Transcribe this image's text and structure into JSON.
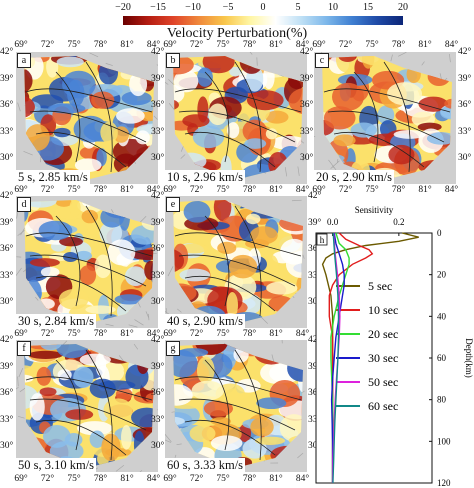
{
  "colorbar": {
    "title": "Velocity Perturbation(%)",
    "ticks": [
      "−20",
      "−15",
      "−10",
      "−5",
      "0",
      "5",
      "10",
      "15",
      "20"
    ],
    "tick_values": [
      -20,
      -15,
      -10,
      -5,
      0,
      5,
      10,
      15,
      20
    ],
    "colors": [
      "#6b0000",
      "#b51d12",
      "#e0452a",
      "#f08a3c",
      "#f9c74c",
      "#fff6a5",
      "#ffffff",
      "#bfe0f5",
      "#7cb7ea",
      "#3f7fd1",
      "#1f4aa6",
      "#0c2678"
    ]
  },
  "map_axes": {
    "lon_ticks": [
      "69°",
      "72°",
      "75°",
      "78°",
      "81°",
      "84°"
    ],
    "lat_ticks": [
      "42°",
      "39°",
      "36°",
      "33°",
      "30°"
    ]
  },
  "panels": [
    {
      "letter": "a",
      "caption": "5 s, 2.85 km/s"
    },
    {
      "letter": "b",
      "caption": "10 s, 2.96 km/s"
    },
    {
      "letter": "c",
      "caption": "20 s, 2.90 km/s"
    },
    {
      "letter": "d",
      "caption": "30 s, 2.84 km/s"
    },
    {
      "letter": "e",
      "caption": "40 s, 2.90 km/s"
    },
    {
      "letter": "f",
      "caption": "50 s, 3.10 km/s"
    },
    {
      "letter": "g",
      "caption": "60 s, 3.33 km/s"
    }
  ],
  "chart_data": {
    "type": "line",
    "panel_letter": "h",
    "xlabel": "Sensitivity",
    "ylabel": "Depth(km)",
    "xlim": [
      -0.05,
      0.3
    ],
    "ylim": [
      0,
      120
    ],
    "x_ticks": [
      "0.0",
      "0.2"
    ],
    "x_tick_values": [
      0.0,
      0.2
    ],
    "y_ticks": [
      "0",
      "20",
      "40",
      "60",
      "80",
      "100",
      "120"
    ],
    "y_tick_values": [
      0,
      20,
      40,
      60,
      80,
      100,
      120
    ],
    "series": [
      {
        "name": "5 sec",
        "color": "#6b5a00",
        "depth": [
          0,
          2,
          4,
          6,
          8,
          10,
          12,
          15,
          20,
          30,
          40,
          60,
          80,
          100,
          120
        ],
        "sensitivity": [
          0.21,
          0.26,
          0.2,
          0.1,
          0.04,
          0.0,
          -0.02,
          -0.03,
          -0.02,
          -0.005,
          0.0,
          0.0,
          0.0,
          0.0,
          0.0
        ]
      },
      {
        "name": "10 sec",
        "color": "#e11d1d",
        "depth": [
          0,
          3,
          6,
          8,
          10,
          12,
          15,
          20,
          25,
          30,
          40,
          50,
          60,
          80,
          100,
          120
        ],
        "sensitivity": [
          0.02,
          0.04,
          0.08,
          0.11,
          0.12,
          0.1,
          0.06,
          0.02,
          0.0,
          -0.01,
          -0.01,
          0.0,
          0.0,
          0.0,
          0.0,
          0.0
        ]
      },
      {
        "name": "20 sec",
        "color": "#33dd33",
        "depth": [
          0,
          5,
          8,
          12,
          15,
          20,
          25,
          30,
          40,
          50,
          60,
          80,
          100,
          120
        ],
        "sensitivity": [
          0.01,
          0.02,
          0.04,
          0.05,
          0.05,
          0.04,
          0.03,
          0.02,
          0.005,
          -0.005,
          -0.005,
          0.0,
          0.0,
          0.0
        ]
      },
      {
        "name": "30 sec",
        "color": "#1a1acc",
        "depth": [
          0,
          5,
          10,
          15,
          20,
          25,
          30,
          40,
          50,
          60,
          70,
          80,
          100,
          120
        ],
        "sensitivity": [
          0.005,
          0.01,
          0.02,
          0.03,
          0.035,
          0.035,
          0.03,
          0.02,
          0.01,
          0.005,
          0.0,
          -0.003,
          0.0,
          0.0
        ]
      },
      {
        "name": "50 sec",
        "color": "#dd22dd",
        "depth": [
          0,
          10,
          20,
          30,
          40,
          50,
          60,
          70,
          80,
          90,
          100,
          110,
          120
        ],
        "sensitivity": [
          0.003,
          0.008,
          0.015,
          0.02,
          0.022,
          0.02,
          0.016,
          0.012,
          0.008,
          0.005,
          0.003,
          0.001,
          0.0
        ]
      },
      {
        "name": "60 sec",
        "color": "#118888",
        "depth": [
          0,
          10,
          20,
          30,
          40,
          50,
          60,
          70,
          80,
          90,
          100,
          110,
          120
        ],
        "sensitivity": [
          0.002,
          0.006,
          0.012,
          0.016,
          0.018,
          0.018,
          0.016,
          0.013,
          0.01,
          0.007,
          0.005,
          0.003,
          0.001
        ]
      }
    ]
  }
}
